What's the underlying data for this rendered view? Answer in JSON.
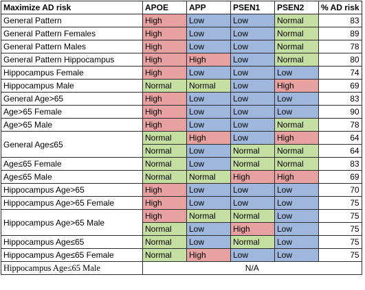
{
  "headers": [
    "Maximize AD risk",
    "APOE",
    "APP",
    "PSEN1",
    "PSEN2",
    "% AD risk"
  ],
  "colors": {
    "High": "#e6a1a0",
    "Low": "#9fb7dc",
    "Normal": "#c5dea1"
  },
  "rows": [
    {
      "name": "General Pattern",
      "levels": [
        "High",
        "Low",
        "Low",
        "Normal"
      ],
      "pct": "83"
    },
    {
      "name": "General Pattern Females",
      "levels": [
        "High",
        "Low",
        "Low",
        "Normal"
      ],
      "pct": "89"
    },
    {
      "name": "General Pattern Males",
      "levels": [
        "High",
        "Low",
        "Low",
        "Normal"
      ],
      "pct": "78"
    },
    {
      "name": "General Pattern Hippocampus",
      "levels": [
        "High",
        "High",
        "Low",
        "Normal"
      ],
      "pct": "80"
    },
    {
      "name": "Hippocampus Female",
      "levels": [
        "High",
        "Low",
        "Low",
        "Low"
      ],
      "pct": "74"
    },
    {
      "name": "Hippocampus Male",
      "levels": [
        "Normal",
        "Normal",
        "Low",
        "High"
      ],
      "pct": "69"
    },
    {
      "name": "General Age>65",
      "levels": [
        "High",
        "Low",
        "Low",
        "Low"
      ],
      "pct": "83"
    },
    {
      "name": "Age>65 Female",
      "levels": [
        "High",
        "Low",
        "Low",
        "Low"
      ],
      "pct": "90"
    },
    {
      "name": "Age>65 Male",
      "levels": [
        "High",
        "Low",
        "Low",
        "Normal"
      ],
      "pct": "78"
    },
    {
      "name": "General Age≤65",
      "levels": [
        "Normal",
        "High",
        "Low",
        "High"
      ],
      "pct": "64"
    },
    {
      "name": "",
      "levels": [
        "Normal",
        "Low",
        "Normal",
        "Normal"
      ],
      "pct": "64"
    },
    {
      "name": "Age≤65 Female",
      "levels": [
        "Normal",
        "Low",
        "Normal",
        "Normal"
      ],
      "pct": "83"
    },
    {
      "name": "Age≤65 Male",
      "levels": [
        "Normal",
        "Normal",
        "High",
        "High"
      ],
      "pct": "69"
    },
    {
      "name": "Hippocampus Age>65",
      "levels": [
        "High",
        "Low",
        "Low",
        "Low"
      ],
      "pct": "70"
    },
    {
      "name": "Hippocampus Age>65 Female",
      "levels": [
        "High",
        "Low",
        "Low",
        "Low"
      ],
      "pct": "75"
    },
    {
      "name": "Hippocampus Age>65 Male",
      "levels": [
        "High",
        "Normal",
        "Normal",
        "Low"
      ],
      "pct": "75"
    },
    {
      "name": "",
      "levels": [
        "Normal",
        "Low",
        "High",
        "Low"
      ],
      "pct": "75"
    },
    {
      "name": "Hippocampus Age≤65",
      "levels": [
        "Normal",
        "Low",
        "Normal",
        "Low"
      ],
      "pct": "75"
    },
    {
      "name": "Hippocampus Age≤65 Female",
      "levels": [
        "Normal",
        "High",
        "Low",
        "Low"
      ],
      "pct": "75"
    }
  ],
  "last_row": {
    "name": "Hippocampus Age≤65 Male",
    "value": "N/A"
  }
}
